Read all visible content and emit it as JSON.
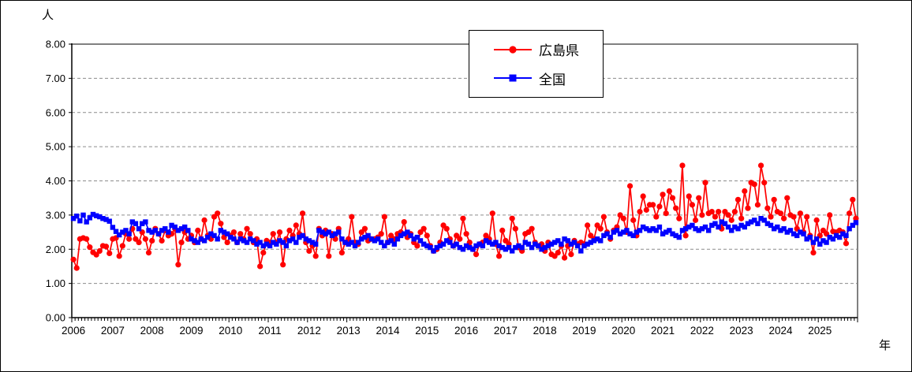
{
  "y_axis": {
    "unit_label": "人",
    "tick_labels": [
      "0.00",
      "1.00",
      "2.00",
      "3.00",
      "4.00",
      "5.00",
      "6.00",
      "7.00",
      "8.00"
    ]
  },
  "x_axis": {
    "unit_label": "年",
    "tick_labels": [
      "2006",
      "2007",
      "2008",
      "2009",
      "2010",
      "2011",
      "2012",
      "2013",
      "2014",
      "2015",
      "2016",
      "2017",
      "2018",
      "2019",
      "2020",
      "2021",
      "2022",
      "2023",
      "2024",
      "2025"
    ]
  },
  "colors": {
    "hiroshima": "#ff0000",
    "zenkoku": "#0000ff",
    "grid": "#8c8c8c",
    "frame": "#808080",
    "axis": "#000000"
  },
  "chart_data": {
    "type": "line",
    "title": "",
    "ylabel": "人",
    "xlabel": "年",
    "ylim": [
      0,
      8
    ],
    "grid": "horizontal-dashed-every-1.00",
    "legend_position": "top-center",
    "x_unit": "monthly points, Jan 2006 - Dec 2025",
    "categories_years": [
      2006,
      2007,
      2008,
      2009,
      2010,
      2011,
      2012,
      2013,
      2014,
      2015,
      2016,
      2017,
      2018,
      2019,
      2020,
      2021,
      2022,
      2023,
      2024,
      2025
    ],
    "months_per_year": 12,
    "series": [
      {
        "name": "広島県",
        "color": "#ff0000",
        "marker": "circle",
        "values": [
          1.7,
          1.45,
          2.3,
          2.33,
          2.3,
          2.06,
          1.91,
          1.84,
          1.95,
          2.1,
          2.08,
          1.88,
          2.3,
          2.33,
          1.8,
          2.1,
          2.45,
          2.3,
          2.6,
          2.3,
          2.2,
          2.5,
          2.3,
          1.9,
          2.25,
          2.6,
          2.45,
          2.25,
          2.55,
          2.4,
          2.45,
          2.6,
          1.55,
          2.2,
          2.5,
          2.3,
          2.4,
          2.2,
          2.55,
          2.3,
          2.85,
          2.4,
          2.3,
          2.95,
          3.05,
          2.75,
          2.35,
          2.2,
          2.4,
          2.5,
          2.2,
          2.45,
          2.3,
          2.6,
          2.45,
          2.2,
          2.3,
          1.5,
          1.9,
          2.25,
          2.2,
          2.45,
          2.2,
          2.5,
          1.55,
          2.3,
          2.55,
          2.4,
          2.7,
          2.45,
          3.05,
          2.2,
          1.95,
          2.1,
          1.8,
          2.6,
          2.4,
          2.55,
          1.8,
          2.45,
          2.3,
          2.6,
          1.9,
          2.2,
          2.3,
          2.95,
          2.2,
          2.15,
          2.5,
          2.6,
          2.25,
          2.3,
          2.3,
          2.35,
          2.45,
          2.95,
          2.2,
          2.4,
          2.3,
          2.45,
          2.5,
          2.8,
          2.35,
          2.45,
          2.2,
          2.1,
          2.5,
          2.6,
          2.4,
          2.1,
          1.95,
          2.0,
          2.2,
          2.7,
          2.6,
          2.3,
          2.1,
          2.4,
          2.3,
          2.9,
          2.45,
          2.2,
          2.0,
          1.85,
          2.15,
          2.2,
          2.4,
          2.3,
          3.05,
          2.15,
          1.8,
          2.55,
          2.25,
          2.15,
          2.9,
          2.6,
          2.05,
          1.95,
          2.45,
          2.5,
          2.6,
          2.2,
          2.1,
          2.15,
          1.95,
          2.2,
          1.85,
          1.8,
          1.9,
          2.1,
          1.75,
          2.1,
          1.85,
          2.25,
          2.15,
          2.2,
          2.15,
          2.7,
          2.4,
          2.3,
          2.7,
          2.6,
          2.95,
          2.5,
          2.3,
          2.55,
          2.65,
          3.0,
          2.9,
          2.5,
          3.85,
          2.85,
          2.4,
          3.1,
          3.55,
          3.15,
          3.3,
          3.3,
          2.95,
          3.25,
          3.6,
          3.05,
          3.7,
          3.5,
          3.2,
          2.9,
          4.45,
          2.4,
          3.55,
          3.3,
          2.85,
          3.5,
          3.0,
          3.95,
          3.05,
          3.1,
          2.95,
          3.1,
          2.6,
          3.1,
          3.0,
          2.85,
          3.1,
          3.45,
          2.9,
          3.7,
          3.2,
          3.95,
          3.9,
          3.3,
          4.45,
          3.95,
          3.2,
          2.95,
          3.45,
          3.1,
          3.05,
          2.9,
          3.5,
          3.0,
          2.95,
          2.6,
          3.05,
          2.5,
          2.95,
          2.4,
          1.9,
          2.85,
          2.4,
          2.55,
          2.45,
          3.0,
          2.52,
          2.5,
          2.55,
          2.5,
          2.17,
          3.05,
          3.45,
          2.9
        ]
      },
      {
        "name": "全国",
        "color": "#0000ff",
        "marker": "square",
        "values": [
          2.9,
          2.97,
          2.83,
          3.0,
          2.8,
          2.92,
          3.02,
          2.98,
          2.95,
          2.9,
          2.87,
          2.82,
          2.64,
          2.52,
          2.42,
          2.5,
          2.55,
          2.45,
          2.8,
          2.75,
          2.6,
          2.75,
          2.8,
          2.55,
          2.5,
          2.55,
          2.45,
          2.55,
          2.6,
          2.5,
          2.7,
          2.65,
          2.55,
          2.6,
          2.65,
          2.55,
          2.3,
          2.25,
          2.2,
          2.3,
          2.25,
          2.35,
          2.45,
          2.4,
          2.3,
          2.55,
          2.5,
          2.45,
          2.35,
          2.3,
          2.2,
          2.3,
          2.25,
          2.2,
          2.3,
          2.25,
          2.15,
          2.2,
          2.1,
          2.15,
          2.1,
          2.2,
          2.15,
          2.25,
          2.2,
          2.1,
          2.25,
          2.3,
          2.2,
          2.35,
          2.4,
          2.3,
          2.25,
          2.2,
          2.15,
          2.55,
          2.5,
          2.45,
          2.5,
          2.4,
          2.45,
          2.5,
          2.3,
          2.2,
          2.15,
          2.2,
          2.1,
          2.2,
          2.3,
          2.35,
          2.4,
          2.3,
          2.25,
          2.3,
          2.2,
          2.1,
          2.2,
          2.25,
          2.15,
          2.3,
          2.4,
          2.45,
          2.5,
          2.4,
          2.3,
          2.35,
          2.25,
          2.15,
          2.1,
          2.05,
          1.95,
          2.05,
          2.1,
          2.15,
          2.25,
          2.2,
          2.1,
          2.15,
          2.05,
          2.0,
          2.1,
          2.05,
          2.0,
          2.1,
          2.15,
          2.1,
          2.25,
          2.2,
          2.15,
          2.2,
          2.1,
          2.05,
          2.0,
          2.05,
          1.95,
          2.05,
          2.1,
          2.05,
          2.2,
          2.15,
          2.05,
          2.15,
          2.1,
          2.0,
          2.05,
          2.1,
          2.15,
          2.2,
          2.25,
          2.15,
          2.3,
          2.25,
          2.15,
          2.2,
          2.1,
          1.95,
          2.1,
          2.15,
          2.2,
          2.25,
          2.3,
          2.25,
          2.4,
          2.45,
          2.35,
          2.5,
          2.55,
          2.45,
          2.5,
          2.55,
          2.45,
          2.4,
          2.5,
          2.55,
          2.65,
          2.6,
          2.55,
          2.6,
          2.55,
          2.65,
          2.45,
          2.5,
          2.55,
          2.45,
          2.4,
          2.35,
          2.55,
          2.6,
          2.65,
          2.7,
          2.6,
          2.55,
          2.6,
          2.65,
          2.55,
          2.7,
          2.75,
          2.65,
          2.8,
          2.75,
          2.65,
          2.55,
          2.65,
          2.6,
          2.7,
          2.65,
          2.75,
          2.8,
          2.85,
          2.75,
          2.9,
          2.85,
          2.75,
          2.7,
          2.6,
          2.65,
          2.55,
          2.6,
          2.5,
          2.55,
          2.45,
          2.4,
          2.5,
          2.45,
          2.3,
          2.35,
          2.2,
          2.3,
          2.15,
          2.25,
          2.2,
          2.35,
          2.3,
          2.4,
          2.35,
          2.45,
          2.4,
          2.6,
          2.7,
          2.78
        ]
      }
    ]
  }
}
